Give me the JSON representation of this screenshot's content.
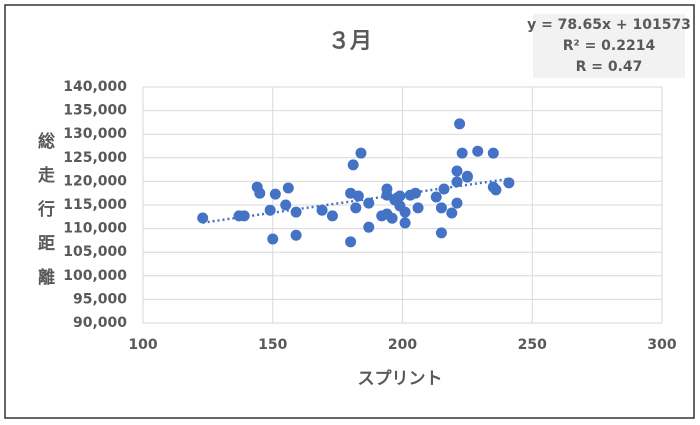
{
  "chart_data": {
    "type": "scatter",
    "title": "３月",
    "xlabel": "スプリント",
    "ylabel": "総走行距離",
    "color": "#4472c4",
    "grid": true,
    "x": [
      123,
      137,
      139,
      144,
      145,
      149,
      150,
      151,
      155,
      156,
      159,
      159,
      169,
      173,
      180,
      180,
      181,
      183,
      182,
      184,
      187,
      187,
      192,
      194,
      194,
      194,
      196,
      197,
      198,
      199,
      199,
      201,
      201,
      203,
      205,
      206,
      213,
      215,
      215,
      216,
      219,
      221,
      221,
      221,
      222,
      223,
      225,
      225,
      229,
      235,
      235,
      236,
      241
    ],
    "values": [
      112250,
      112700,
      112700,
      118800,
      117500,
      113900,
      107800,
      117300,
      115000,
      118600,
      113500,
      108600,
      113900,
      112700,
      107200,
      117500,
      123500,
      116900,
      114400,
      126000,
      115400,
      110300,
      112700,
      117100,
      118400,
      113100,
      112200,
      116100,
      116500,
      114800,
      116900,
      113500,
      111200,
      117100,
      117500,
      114400,
      116700,
      114400,
      109100,
      118400,
      113300,
      122200,
      119900,
      115400,
      132200,
      126000,
      120900,
      121100,
      126400,
      126000,
      118800,
      118200,
      119700
    ],
    "xlim": [
      100,
      300
    ],
    "xticks": [
      100,
      150,
      200,
      250,
      300
    ],
    "ylim": [
      90000,
      140000
    ],
    "yticks": [
      {
        "value": 90000,
        "label": "90,000"
      },
      {
        "value": 95000,
        "label": "95,000"
      },
      {
        "value": 100000,
        "label": "100,000"
      },
      {
        "value": 105000,
        "label": "105,000"
      },
      {
        "value": 110000,
        "label": "110,000"
      },
      {
        "value": 115000,
        "label": "115,000"
      },
      {
        "value": 120000,
        "label": "120,000"
      },
      {
        "value": 125000,
        "label": "125,000"
      },
      {
        "value": 130000,
        "label": "130,000"
      },
      {
        "value": 135000,
        "label": "135,000"
      },
      {
        "value": 140000,
        "label": "140,000"
      }
    ],
    "trendline": {
      "slope": 78.65,
      "intercept": 101573,
      "label": "y = 78.65x + 101573",
      "r2_label": "R² = 0.2214",
      "r_label": "R = 0.47"
    }
  }
}
